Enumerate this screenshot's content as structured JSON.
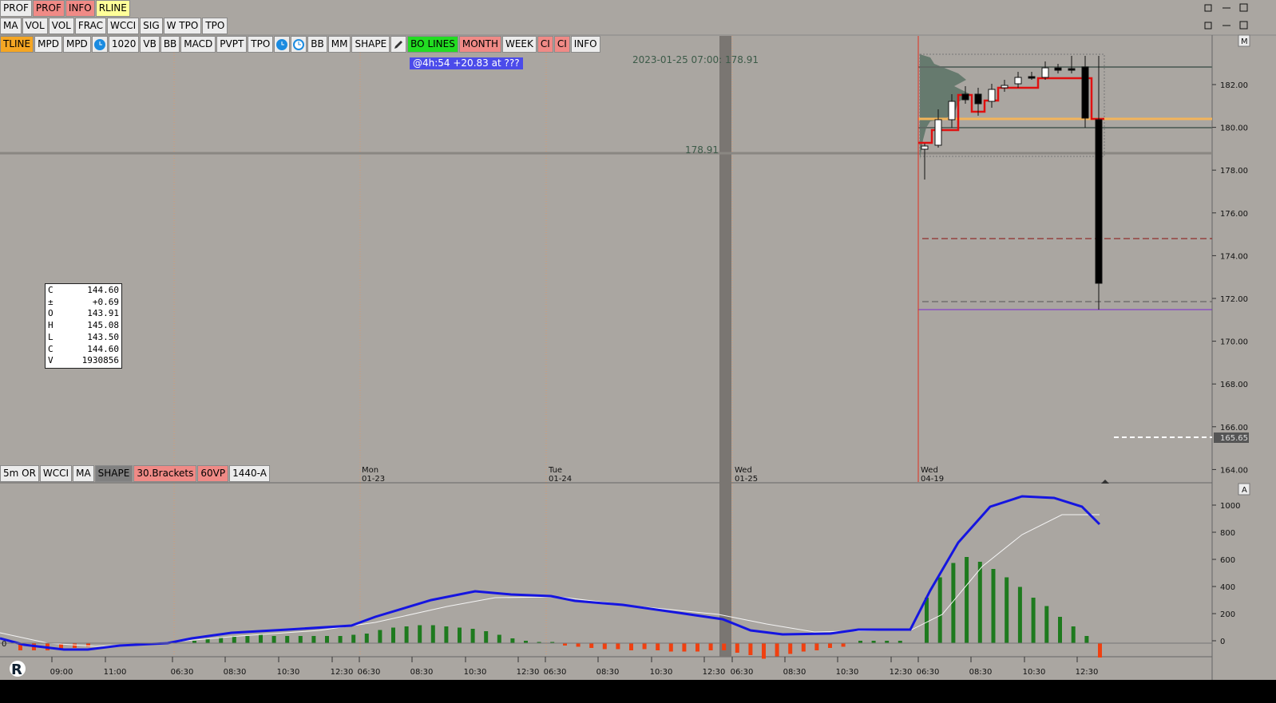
{
  "toolbars": {
    "row1": [
      {
        "label": "PROF"
      },
      {
        "label": "PROF",
        "color": "#f08a86"
      },
      {
        "label": "INFO",
        "color": "#f08a86"
      },
      {
        "label": "RLINE",
        "color": "#ffff99"
      }
    ],
    "row2": [
      {
        "label": "MA"
      },
      {
        "label": "VOL"
      },
      {
        "label": "VOL"
      },
      {
        "label": "FRAC"
      },
      {
        "label": "WCCI"
      },
      {
        "label": "SIG"
      },
      {
        "label": "W TPO"
      },
      {
        "label": "TPO"
      }
    ],
    "row3": [
      {
        "label": "TLINE",
        "color": "#f5a623"
      },
      {
        "label": "MPD"
      },
      {
        "label": "MPD"
      },
      {
        "label": "1020"
      },
      {
        "label": "VB"
      },
      {
        "label": "BB"
      },
      {
        "label": "MACD"
      },
      {
        "label": "PVPT"
      },
      {
        "label": "TPO"
      },
      {
        "label": "BB"
      },
      {
        "label": "MM"
      },
      {
        "label": "SHAPE"
      },
      {
        "label": "BO LINES",
        "color": "#22dd22"
      },
      {
        "label": "MONTH",
        "color": "#f08a86"
      },
      {
        "label": "WEEK"
      },
      {
        "label": "CI",
        "color": "#f08a86"
      },
      {
        "label": "CI",
        "color": "#f08a86"
      },
      {
        "label": "INFO"
      }
    ],
    "bottom": [
      {
        "label": "5m OR"
      },
      {
        "label": "WCCI"
      },
      {
        "label": "MA"
      },
      {
        "label": "SHAPE",
        "color": "#808080"
      },
      {
        "label": "30.Brackets",
        "color": "#f08a86"
      },
      {
        "label": "60VP",
        "color": "#f08a86"
      },
      {
        "label": "1440-A"
      }
    ]
  },
  "annotations": {
    "timestamp": "2023-01-25 07:00: 178.91",
    "level": "178.91",
    "info_badge": "@4h:54  +20.83 at ???"
  },
  "ohlc_box": [
    [
      "C",
      "144.60"
    ],
    [
      "±",
      "+0.69"
    ],
    [
      "O",
      "143.91"
    ],
    [
      "H",
      "145.08"
    ],
    [
      "L",
      "143.50"
    ],
    [
      "C",
      "144.60"
    ],
    [
      "V",
      "1930856"
    ]
  ],
  "price_axis": {
    "labels": [
      "182.00",
      "180.00",
      "178.00",
      "176.00",
      "174.00",
      "172.00",
      "170.00",
      "168.00",
      "166.00",
      "164.00"
    ],
    "current_price": "165.65",
    "marker": "M"
  },
  "indicator_axis": {
    "labels": [
      "1000",
      "800",
      "600",
      "400",
      "200",
      "0"
    ],
    "marker": "A",
    "zero_label": "0"
  },
  "day_labels": [
    [
      "Mon",
      "01-23"
    ],
    [
      "Tue",
      "01-24"
    ],
    [
      "Wed",
      "01-25"
    ],
    [
      "Wed",
      "04-19"
    ]
  ],
  "time_labels": [
    "09:00",
    "11:00",
    "06:30",
    "08:30",
    "10:30",
    "12:30",
    "06:30",
    "08:30",
    "10:30",
    "12:30",
    "06:30",
    "08:30",
    "10:30",
    "12:30",
    "06:30",
    "08:30",
    "10:30",
    "12:30",
    "06:30",
    "08:30",
    "10:30",
    "12:30"
  ]
}
